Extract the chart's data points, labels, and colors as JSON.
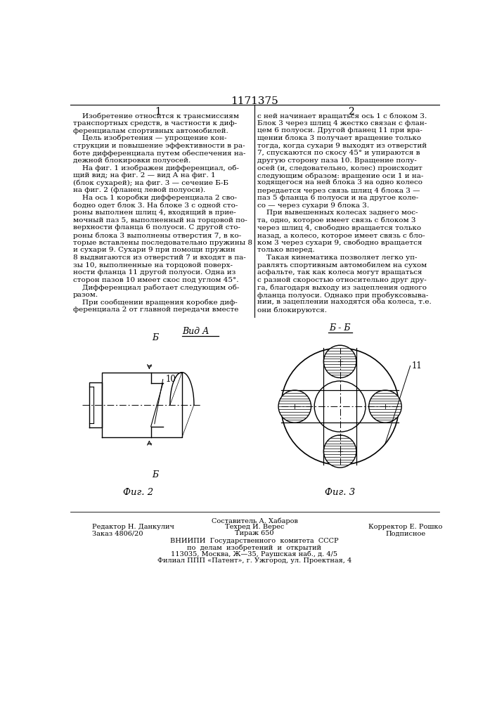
{
  "title": "1171375",
  "col1_header": "1",
  "col2_header": "2",
  "fig2_label": "Фиг. 2",
  "fig3_label": "Фиг. 3",
  "vida_label": "Вид А",
  "bb_label": "Б - Б",
  "label_10": "10",
  "label_11": "11",
  "label_b": "Б",
  "footer_left1": "Редактор Н. Данкулич",
  "footer_left2": "Заказ 4806/20",
  "footer_center_top": "Составитель А. Хабаров",
  "footer_center_mid": "Техред И. Верес",
  "footer_center_bot": "Тираж 650",
  "footer_right_top": "Корректор Е. Рошко",
  "footer_right_mid": "Подписное",
  "footer_org1": "ВНИИПИ  Государственного  комитета  СССР",
  "footer_org2": "по  делам  изобретений  и  открытий",
  "footer_org3": "113035, Москва, Ж—35, Раушская наб., д. 4/5",
  "footer_org4": "Филиал ППП «Патент», г. Ужгород, ул. Проектная, 4",
  "col1_text": [
    "    Изобретение относится к трансмиссиям",
    "транспортных средств, в частности к диф-",
    "ференциалам спортивных автомобилей.",
    "    Цель изобретения — упрощение кон-",
    "струкции и повышение эффективности в ра-",
    "боте дифференциала путем обеспечения на-",
    "дежной блокировки полуосей.",
    "    На фиг. 1 изображен дифференциал, об-",
    "щий вид; на фиг. 2 — вид А на фиг. 1",
    "(блок сухарей); на фиг. 3 — сечение Б-Б",
    "на фиг. 2 (фланец левой полуоси).",
    "    На ось 1 коробки дифференциала 2 сво-",
    "бодно одет блок 3. На блоке 3 с одной сто-",
    "роны выполнен шлиц 4, входящий в прие-",
    "мочный паз 5, выполненный на торцовой по-",
    "верхности фланца 6 полуоси. С другой сто-",
    "роны блока 3 выполнены отверстия 7, в ко-",
    "торые вставлены последовательно пружины 8",
    "и сухари 9. Сухари 9 при помощи пружин",
    "8 выдвигаются из отверстий 7 и входят в па-",
    "зы 10, выполненные на торцовой поверх-",
    "ности фланца 11 другой полуоси. Одна из",
    "сторон пазов 10 имеет скос под углом 45°.",
    "    Дифференциал работает следующим об-",
    "разом.",
    "    При сообщении вращения коробке диф-",
    "ференциала 2 от главной передачи вместе"
  ],
  "col2_text": [
    "с ней начинает вращаться ось 1 с блоком 3.",
    "Блок 3 через шлиц 4 жестко связан с флан-",
    "цем 6 полуоси. Другой фланец 11 при вра-",
    "щении блока 3 получает вращение только",
    "тогда, когда сухари 9 выходят из отверстий",
    "7, спускаются по скосу 45° и упираются в",
    "другую сторону паза 10. Вращение полу-",
    "осей (и, следовательно, колес) происходит",
    "следующим образом: вращение оси 1 и на-",
    "ходящегося на ней блока 3 на одно колесо",
    "передается через связь шлиц 4 блока 3 —",
    "паз 5 фланца 6 полуоси и на другое коле-",
    "со — через сухари 9 блока 3.",
    "    При вывешенных колесах заднего мос-",
    "та, одно, которое имеет связь с блоком 3",
    "через шлиц 4, свободно вращается только",
    "назад, а колесо, которое имеет связь с бло-",
    "ком 3 через сухари 9, свободно вращается",
    "только вперед.",
    "    Такая кинематика позволяет легко уп-",
    "равлять спортивным автомобилем на сухом",
    "асфальте, так как колеса могут вращаться",
    "с разной скоростью относительно друг дру-",
    "га, благодаря выходу из зацепления одного",
    "фланца полуоси. Однако при пробуксовыва-",
    "нии, в зацеплении находятся оба колеса, т.е.",
    "они блокируются."
  ],
  "background_color": "#ffffff",
  "text_color": "#000000",
  "line_color": "#000000"
}
